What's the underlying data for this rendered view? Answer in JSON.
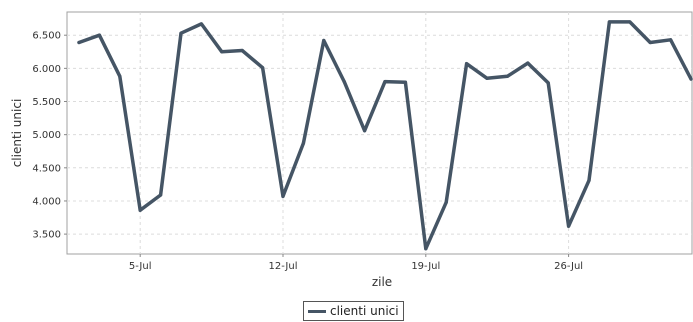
{
  "chart_data": {
    "type": "line",
    "title": "",
    "xlabel": "zile",
    "ylabel": "clienti unici",
    "x": [
      "2-Jul",
      "3-Jul",
      "4-Jul",
      "5-Jul",
      "6-Jul",
      "7-Jul",
      "8-Jul",
      "9-Jul",
      "10-Jul",
      "11-Jul",
      "12-Jul",
      "13-Jul",
      "14-Jul",
      "15-Jul",
      "16-Jul",
      "17-Jul",
      "18-Jul",
      "19-Jul",
      "20-Jul",
      "21-Jul",
      "22-Jul",
      "23-Jul",
      "24-Jul",
      "25-Jul",
      "26-Jul",
      "27-Jul",
      "28-Jul",
      "29-Jul",
      "30-Jul",
      "31-Jul",
      "1-Aug"
    ],
    "x_tick_labels": [
      "5-Jul",
      "12-Jul",
      "19-Jul",
      "26-Jul"
    ],
    "series": [
      {
        "name": "clienti unici",
        "color": "#455565",
        "values": [
          6390,
          6500,
          5880,
          3860,
          4090,
          6530,
          6670,
          6250,
          6270,
          6010,
          4070,
          4870,
          6420,
          5800,
          5060,
          5800,
          5790,
          3280,
          3980,
          6070,
          5850,
          5880,
          6080,
          5780,
          3620,
          4310,
          6700,
          6700,
          6390,
          6430,
          5840
        ]
      }
    ],
    "ylim": [
      3200,
      6850
    ],
    "y_ticks": [
      3500,
      4000,
      4500,
      5000,
      5500,
      6000,
      6500
    ],
    "y_tick_labels": [
      "3.500",
      "4.000",
      "4.500",
      "5.000",
      "5.500",
      "6.000",
      "6.500"
    ],
    "grid": true,
    "legend": {
      "position": "bottom",
      "label": "clienti unici"
    }
  }
}
